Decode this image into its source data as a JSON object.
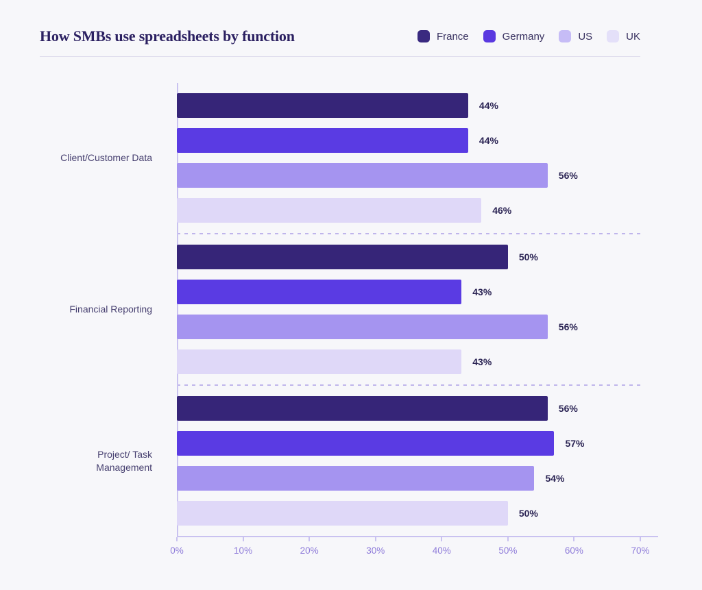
{
  "header": {
    "title": "How SMBs use spreadsheets by function"
  },
  "chart_data": {
    "type": "bar",
    "orientation": "horizontal",
    "title": "How SMBs use spreadsheets by function",
    "categories": [
      "Client/Customer Data",
      "Financial Reporting",
      "Project/ Task Management"
    ],
    "series": [
      {
        "name": "France",
        "color": "#362578",
        "legend_color": "#3A2A80",
        "values": [
          44,
          50,
          56
        ]
      },
      {
        "name": "Germany",
        "color": "#5A3BE3",
        "legend_color": "#5A39E0",
        "values": [
          44,
          43,
          57
        ]
      },
      {
        "name": "US",
        "color": "#A594F0",
        "legend_color": "#C6BCF6",
        "values": [
          56,
          56,
          54
        ]
      },
      {
        "name": "UK",
        "color": "#DFD8F8",
        "legend_color": "#E4E0F9",
        "values": [
          46,
          43,
          50
        ]
      }
    ],
    "value_suffix": "%",
    "xlim": [
      0,
      70
    ],
    "x_ticks": [
      "0%",
      "10%",
      "20%",
      "30%",
      "40%",
      "50%",
      "60%",
      "70%"
    ],
    "legend_position": "top-right",
    "grid": false
  },
  "colors": {
    "background": "#F7F7FA",
    "title_text": "#2B2061",
    "axis_line": "#C9C2F0",
    "tick_label": "#8E7BD9",
    "category_label": "#474070",
    "value_label": "#2A2353",
    "group_separator": "#BFB5EB",
    "header_divider": "#E0DEED"
  }
}
